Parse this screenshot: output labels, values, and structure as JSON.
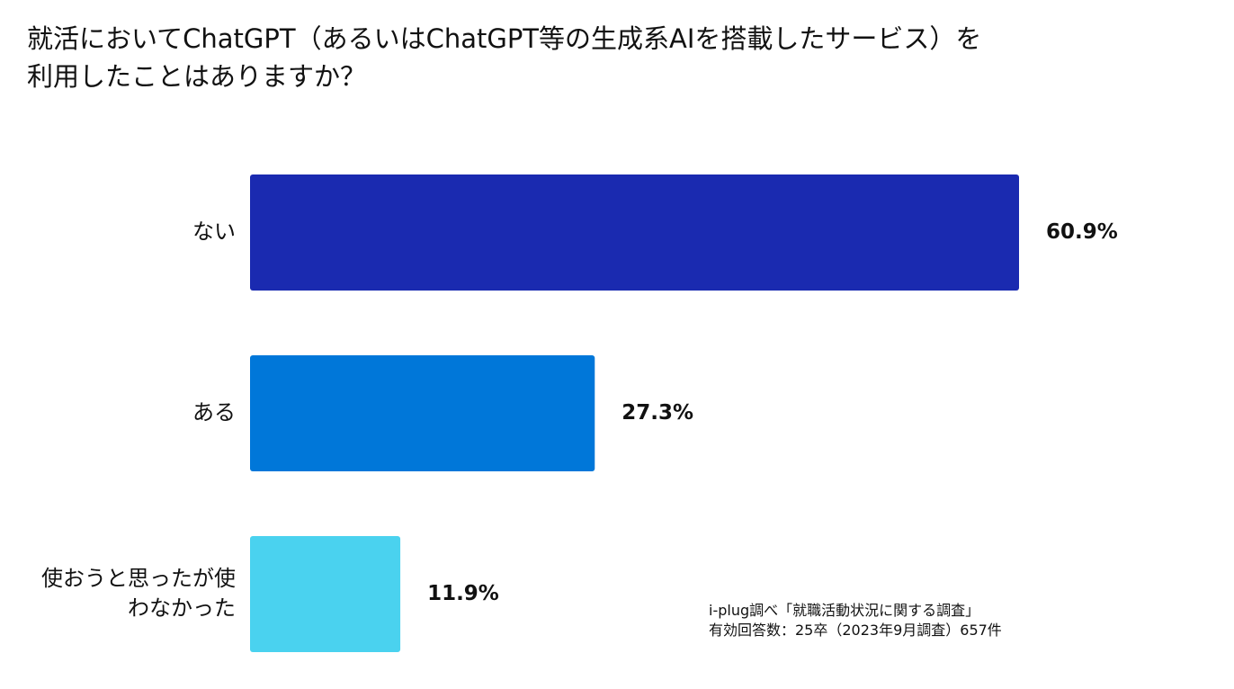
{
  "chart_data": {
    "type": "bar",
    "orientation": "horizontal",
    "title_lines": [
      "就活においてChatGPT（あるいはChatGPT等の生成系AIを搭載したサービス）を",
      "利用したことはありますか？"
    ],
    "categories": [
      [
        "ない"
      ],
      [
        "ある"
      ],
      [
        "使おうと思ったが使",
        "わなかった"
      ]
    ],
    "values": [
      60.9,
      27.3,
      11.9
    ],
    "value_labels": [
      "60.9%",
      "27.3%",
      "11.9%"
    ],
    "colors": [
      "#1a2ab0",
      "#0077d9",
      "#4ad2ef"
    ],
    "xlim": [
      0,
      60.9
    ],
    "grid": false,
    "legend": "none"
  },
  "source": {
    "line1": "i-plug調べ「就職活動状況に関する調査」",
    "line2": "有効回答数：25卒（2023年9月調査）657件"
  }
}
